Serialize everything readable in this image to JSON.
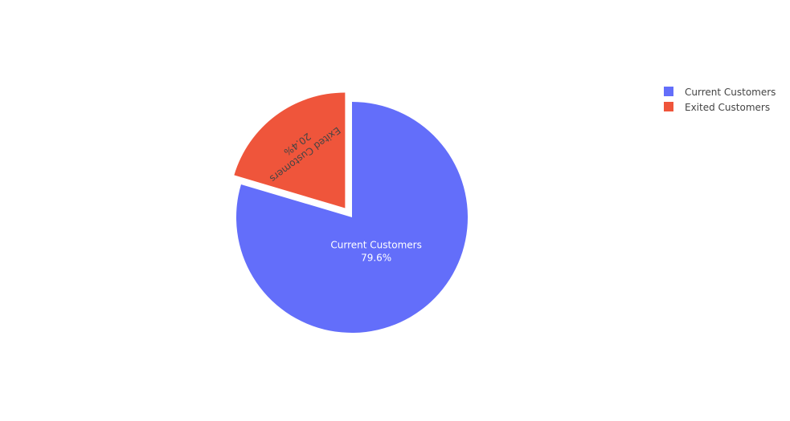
{
  "chart_data": {
    "type": "pie",
    "labels": [
      "Current Customers",
      "Exited Customers"
    ],
    "percent_labels": [
      "79.6%",
      "20.4%"
    ],
    "values": [
      79.6,
      20.4
    ],
    "colors": [
      "#636efa",
      "#ef553b"
    ],
    "pull": [
      0,
      0.1
    ],
    "legend_placement": "top-right",
    "label_colors": [
      "#ffffff",
      "#444444"
    ]
  }
}
